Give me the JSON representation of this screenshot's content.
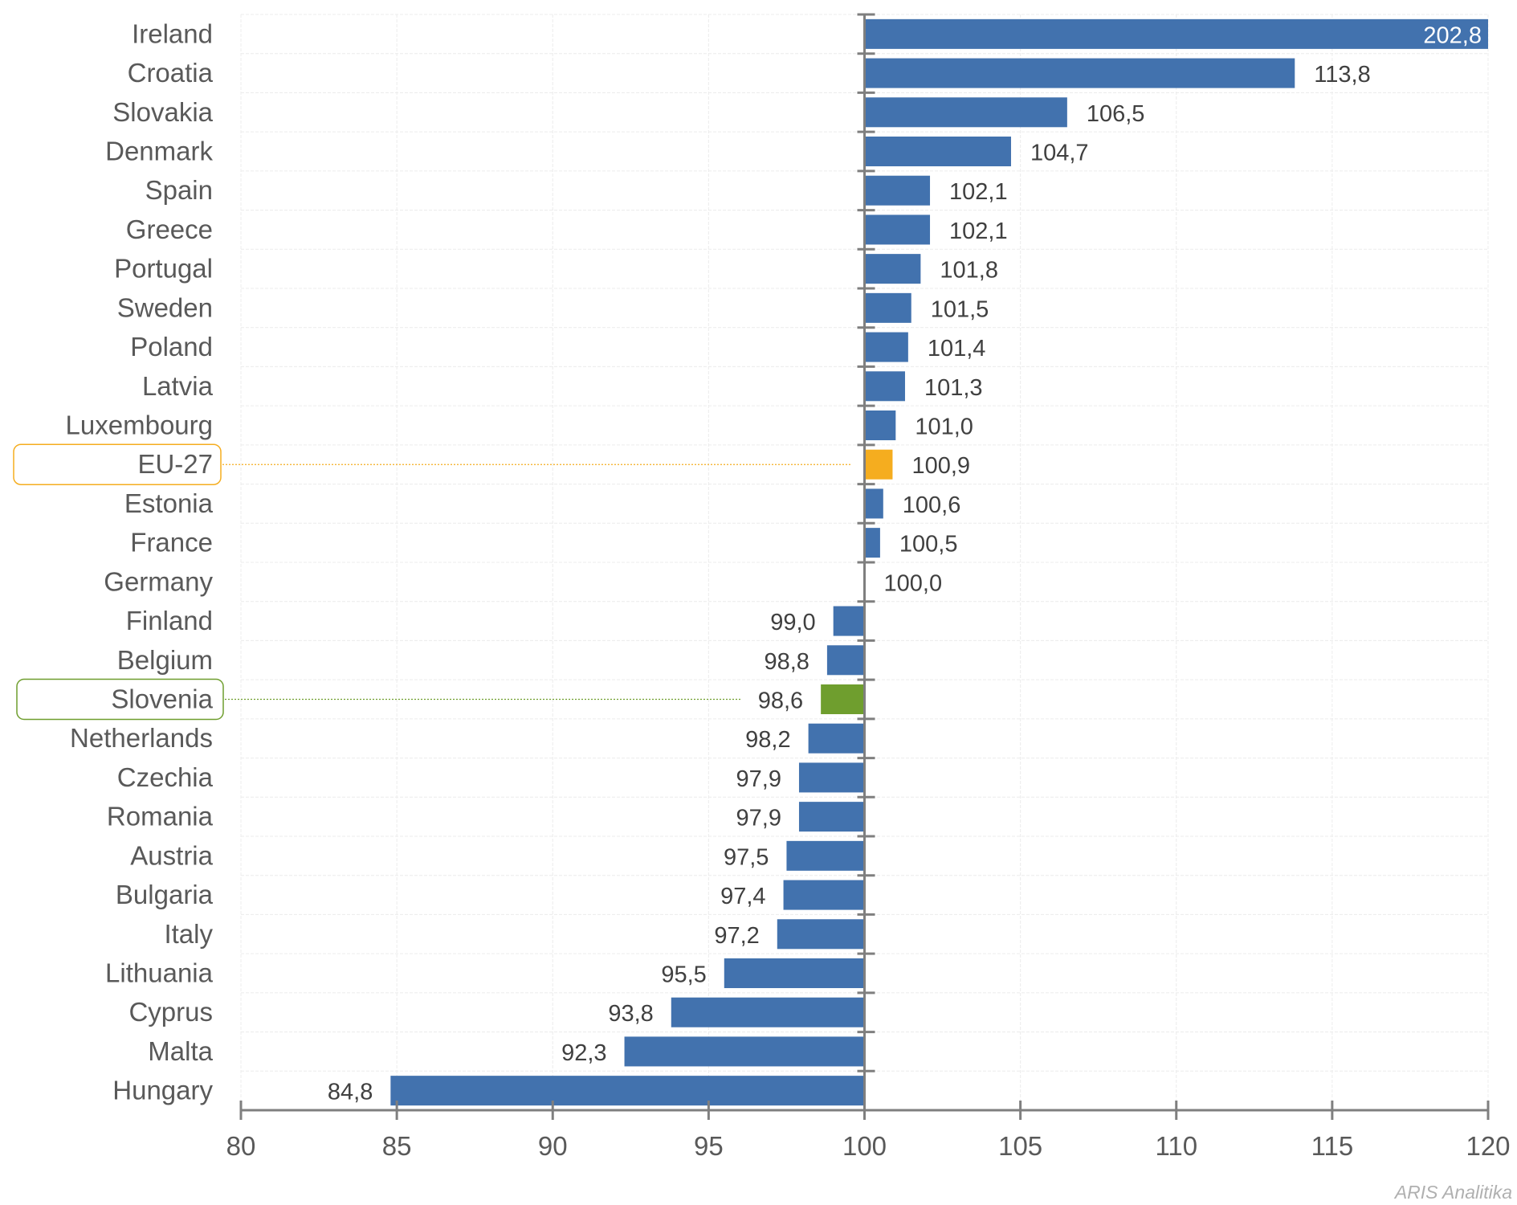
{
  "chart_data": {
    "type": "bar",
    "orientation": "horizontal",
    "title": "",
    "xlabel": "",
    "ylabel": "",
    "xlim": [
      80,
      120
    ],
    "x_ticks": [
      80,
      85,
      90,
      95,
      100,
      105,
      110,
      115,
      120
    ],
    "baseline": 100,
    "grid": true,
    "categories": [
      "Ireland",
      "Croatia",
      "Slovakia",
      "Denmark",
      "Spain",
      "Greece",
      "Portugal",
      "Sweden",
      "Poland",
      "Latvia",
      "Luxembourg",
      "EU-27",
      "Estonia",
      "France",
      "Germany",
      "Finland",
      "Belgium",
      "Slovenia",
      "Netherlands",
      "Czechia",
      "Romania",
      "Austria",
      "Bulgaria",
      "Italy",
      "Lithuania",
      "Cyprus",
      "Malta",
      "Hungary"
    ],
    "values": [
      202.8,
      113.8,
      106.5,
      104.7,
      102.1,
      102.1,
      101.8,
      101.5,
      101.4,
      101.3,
      101.0,
      100.9,
      100.6,
      100.5,
      100.0,
      99.0,
      98.8,
      98.6,
      98.2,
      97.9,
      97.9,
      97.5,
      97.4,
      97.2,
      95.5,
      93.8,
      92.3,
      84.8
    ],
    "value_labels": [
      "202,8",
      "113,8",
      "106,5",
      "104,7",
      "102,1",
      "102,1",
      "101,8",
      "101,5",
      "101,4",
      "101,3",
      "101,0",
      "100,9",
      "100,6",
      "100,5",
      "100,0",
      "99,0",
      "98,8",
      "98,6",
      "98,2",
      "97,9",
      "97,9",
      "97,5",
      "97,4",
      "97,2",
      "95,5",
      "93,8",
      "92,3",
      "84,8"
    ],
    "highlights": {
      "EU-27": "#f5ad1f",
      "Slovenia": "#6f9e2e"
    },
    "default_color": "#4272ae",
    "source_watermark": "ARIS Analitika"
  },
  "colors": {
    "bar": "#4272ae",
    "eu": "#f5ad1f",
    "slovenia": "#6f9e2e",
    "axis": "#7f7f7f",
    "grid": "#ececec"
  }
}
